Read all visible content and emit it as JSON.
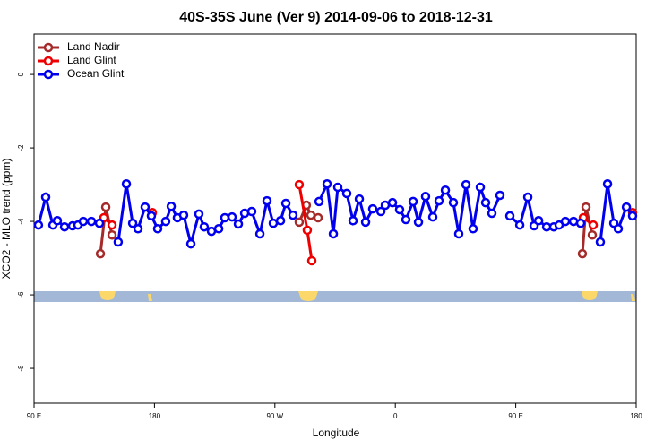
{
  "chart_data": {
    "type": "line",
    "title": "40S-35S June (Ver 9)   2014-09-06 to 2018-12-31",
    "x_label": "Longitude",
    "y_label": "XCO2 - MLO trend (ppm)",
    "xlim": [
      90,
      540
    ],
    "ylim": [
      -8.95,
      1.1
    ],
    "xticks": [
      {
        "value": 90,
        "label": "90 E"
      },
      {
        "value": 180,
        "label": "180"
      },
      {
        "value": 270,
        "label": "90 W"
      },
      {
        "value": 360,
        "label": "0"
      },
      {
        "value": 450,
        "label": "90 E"
      },
      {
        "value": 540,
        "label": "180"
      }
    ],
    "yticks": [
      0,
      -2,
      -4,
      -6,
      -8
    ],
    "legend": "top-left",
    "series": [
      {
        "name": "Land Nadir",
        "color": "#a52a2a",
        "x": [
          139.6,
          143.6,
          148.3,
          null,
          288.2,
          293.5,
          296.9,
          302.3,
          null,
          499.8,
          502.5,
          507.2
        ],
        "values": [
          -4.88,
          -3.61,
          -4.37,
          null,
          -4.02,
          -3.56,
          -3.83,
          -3.9,
          null,
          -4.88,
          -3.61,
          -4.37
        ]
      },
      {
        "name": "Land Glint",
        "color": "#ee0000",
        "x": [
          142.2,
          148.3,
          null,
          178.4,
          null,
          288.2,
          294.2,
          297.6,
          null,
          500.5,
          507.9,
          null,
          537.3
        ],
        "values": [
          -3.9,
          -4.1,
          null,
          -3.76,
          null,
          -3.0,
          -4.24,
          -5.07,
          null,
          -3.9,
          -4.1,
          null,
          -3.76
        ]
      },
      {
        "name": "Ocean Glint",
        "color": "#0000ee",
        "x": [
          93.3,
          98.7,
          104.1,
          107.4,
          112.8,
          118.8,
          122.8,
          126.8,
          132.9,
          138.9,
          null,
          152.9,
          159.0,
          163.7,
          167.7,
          173.0,
          177.7,
          182.4,
          188.4,
          192.5,
          197.1,
          201.8,
          207.2,
          213.2,
          217.2,
          222.6,
          228.0,
          232.6,
          238.0,
          242.7,
          247.4,
          252.7,
          258.8,
          264.1,
          268.8,
          274.2,
          278.2,
          283.5,
          null,
          303.0,
          309.0,
          313.7,
          317.0,
          323.7,
          328.4,
          333.1,
          337.8,
          343.1,
          349.2,
          352.5,
          357.9,
          363.2,
          367.9,
          373.3,
          377.3,
          382.6,
          388.0,
          392.7,
          397.4,
          403.4,
          407.4,
          412.8,
          418.1,
          423.5,
          427.5,
          432.2,
          438.2,
          null,
          445.6,
          453.0,
          459.0,
          463.7,
          467.1,
          473.1,
          478.4,
          482.4,
          487.1,
          493.2,
          498.5,
          null,
          513.2,
          518.6,
          523.3,
          526.6,
          532.7,
          537.3
        ],
        "values": [
          -4.1,
          -3.34,
          -4.1,
          -3.98,
          -4.15,
          -4.12,
          -4.1,
          -4.0,
          -4.0,
          -4.05,
          null,
          -4.56,
          -2.98,
          -4.05,
          -4.2,
          -3.61,
          -3.85,
          -4.2,
          -4.0,
          -3.59,
          -3.9,
          -3.83,
          -4.61,
          -3.8,
          -4.15,
          -4.27,
          -4.2,
          -3.9,
          -3.88,
          -4.07,
          -3.78,
          -3.73,
          -4.34,
          -3.44,
          -4.05,
          -3.98,
          -3.51,
          -3.83,
          null,
          -3.46,
          -2.98,
          -4.34,
          -3.07,
          -3.24,
          -3.98,
          -3.39,
          -4.02,
          -3.66,
          -3.73,
          -3.56,
          -3.49,
          -3.68,
          -3.95,
          -3.46,
          -4.02,
          -3.32,
          -3.88,
          -3.44,
          -3.15,
          -3.49,
          -4.34,
          -3.0,
          -4.2,
          -3.07,
          -3.49,
          -3.78,
          -3.29,
          null,
          -3.85,
          -4.1,
          -3.34,
          -4.12,
          -3.98,
          -4.15,
          -4.15,
          -4.1,
          -4.0,
          -4.0,
          -4.05,
          null,
          -4.56,
          -2.98,
          -4.05,
          -4.2,
          -3.61,
          -3.85
        ]
      }
    ]
  }
}
